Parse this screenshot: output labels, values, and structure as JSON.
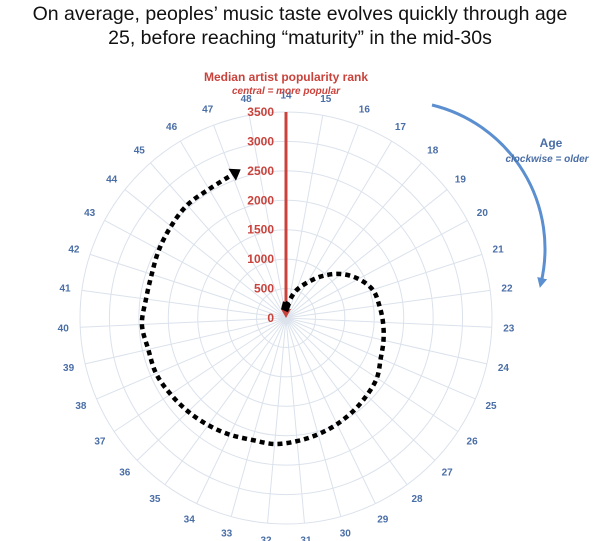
{
  "title": {
    "line1": "On average, peoples’ music taste evolves quickly through age",
    "line2": "25, before reaching “maturity” in the mid-30s"
  },
  "chart_data": {
    "type": "polar-line",
    "radial_axis": {
      "title": "Median artist popularity rank",
      "subtitle": "central = more popular",
      "ticks": [
        0,
        500,
        1000,
        1500,
        2000,
        2500,
        3000,
        3500
      ],
      "range": [
        0,
        3500
      ],
      "color": "#c9433c"
    },
    "angular_axis": {
      "title": "Age",
      "subtitle": "clockwise = older",
      "ticks": [
        14,
        15,
        16,
        17,
        18,
        19,
        20,
        21,
        22,
        23,
        24,
        25,
        26,
        27,
        28,
        29,
        30,
        31,
        32,
        33,
        34,
        35,
        36,
        37,
        38,
        39,
        40,
        41,
        42,
        43,
        44,
        45,
        46,
        47,
        48
      ],
      "direction": "clockwise",
      "color": "#4a6ea6"
    },
    "series": [
      {
        "x": [
          14,
          15,
          16,
          17,
          18,
          19,
          20,
          21,
          22,
          23,
          24,
          25,
          26,
          27,
          28,
          29,
          30,
          31,
          32,
          33,
          34,
          35,
          36,
          37,
          38,
          39,
          40,
          41,
          42,
          43,
          44,
          45,
          46,
          47
        ],
        "values": [
          200,
          300,
          500,
          700,
          950,
          1200,
          1400,
          1550,
          1600,
          1650,
          1700,
          1750,
          1850,
          1900,
          1950,
          2000,
          2050,
          2100,
          2150,
          2150,
          2200,
          2250,
          2300,
          2350,
          2400,
          2400,
          2450,
          2400,
          2400,
          2450,
          2500,
          2550,
          2550,
          2600
        ],
        "color": "#000000"
      }
    ],
    "grid": true
  }
}
